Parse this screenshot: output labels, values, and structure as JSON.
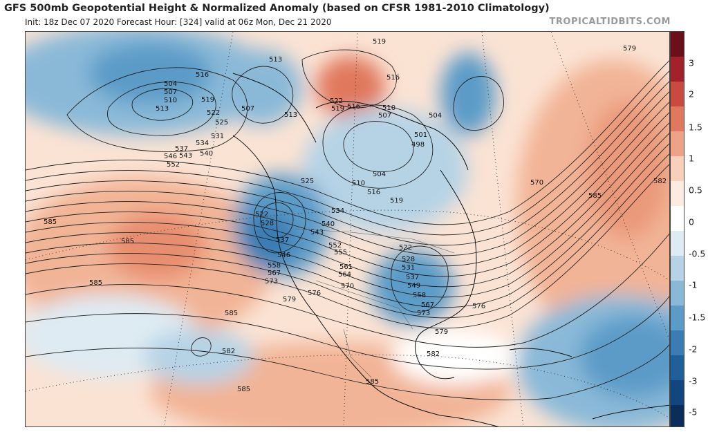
{
  "header": {
    "title": "GFS 500mb Geopotential Height & Normalized Anomaly (based on CFSR 1981-2010 Climatology)",
    "subtitle": "Init: 18z Dec 07 2020   Forecast Hour: [324]   valid at 06z Mon, Dec 21 2020",
    "brand": "TROPICALTIDBITS.COM"
  },
  "colorbar": {
    "ticks": [
      "3",
      "2",
      "1.5",
      "1",
      "0.5",
      "0",
      "-0.5",
      "-1",
      "-1.5",
      "-2",
      "-3",
      "-5"
    ],
    "colors": [
      "#6b0f1a",
      "#a3212a",
      "#c94a3f",
      "#e0785d",
      "#eea387",
      "#f8cfbb",
      "#fcebe1",
      "#ffffff",
      "#deebf3",
      "#b6d3e6",
      "#8ab9d8",
      "#5c9bc8",
      "#3a7db4",
      "#1f5f9a",
      "#124680",
      "#0a2d5c"
    ]
  },
  "contour_labels": [
    {
      "id": "label-504-a",
      "text": "504"
    },
    {
      "id": "label-507-a",
      "text": "507"
    },
    {
      "id": "label-510-a",
      "text": "510"
    },
    {
      "id": "label-513-a",
      "text": "513"
    },
    {
      "id": "label-516-a",
      "text": "516"
    },
    {
      "id": "label-519-a",
      "text": "519"
    },
    {
      "id": "label-522-a",
      "text": "522"
    },
    {
      "id": "label-525-a",
      "text": "525"
    },
    {
      "id": "label-531-a",
      "text": "531"
    },
    {
      "id": "label-534-a",
      "text": "534"
    },
    {
      "id": "label-537-a",
      "text": "537"
    },
    {
      "id": "label-540-a",
      "text": "540"
    },
    {
      "id": "label-543-a",
      "text": "543"
    },
    {
      "id": "label-546-a",
      "text": "546"
    },
    {
      "id": "label-552-a",
      "text": "552"
    },
    {
      "id": "label-513-b",
      "text": "513"
    },
    {
      "id": "label-507-b",
      "text": "507"
    },
    {
      "id": "label-513-c",
      "text": "513"
    },
    {
      "id": "label-519-b",
      "text": "519"
    },
    {
      "id": "label-516-b",
      "text": "516"
    },
    {
      "id": "label-522-b",
      "text": "522"
    },
    {
      "id": "label-519-c",
      "text": "519"
    },
    {
      "id": "label-516-c",
      "text": "516"
    },
    {
      "id": "label-510-b",
      "text": "510"
    },
    {
      "id": "label-507-c",
      "text": "507"
    },
    {
      "id": "label-504-b",
      "text": "504"
    },
    {
      "id": "label-501",
      "text": "501"
    },
    {
      "id": "label-498",
      "text": "498"
    },
    {
      "id": "label-504-c",
      "text": "504"
    },
    {
      "id": "label-510-c",
      "text": "510"
    },
    {
      "id": "label-516-d",
      "text": "516"
    },
    {
      "id": "label-519-d",
      "text": "519"
    },
    {
      "id": "label-525-b",
      "text": "525"
    },
    {
      "id": "label-522-c",
      "text": "522"
    },
    {
      "id": "label-528-a",
      "text": "528"
    },
    {
      "id": "label-534-b",
      "text": "534"
    },
    {
      "id": "label-540-b",
      "text": "540"
    },
    {
      "id": "label-543-b",
      "text": "543"
    },
    {
      "id": "label-537-b",
      "text": "537"
    },
    {
      "id": "label-546-b",
      "text": "546"
    },
    {
      "id": "label-552-b",
      "text": "552"
    },
    {
      "id": "label-555",
      "text": "555"
    },
    {
      "id": "label-558-a",
      "text": "558"
    },
    {
      "id": "label-561",
      "text": "561"
    },
    {
      "id": "label-564",
      "text": "564"
    },
    {
      "id": "label-567-a",
      "text": "567"
    },
    {
      "id": "label-573-a",
      "text": "573"
    },
    {
      "id": "label-570-a",
      "text": "570"
    },
    {
      "id": "label-576-a",
      "text": "576"
    },
    {
      "id": "label-579-a",
      "text": "579"
    },
    {
      "id": "label-522-d",
      "text": "522"
    },
    {
      "id": "label-528-b",
      "text": "528"
    },
    {
      "id": "label-531-b",
      "text": "531"
    },
    {
      "id": "label-537-c",
      "text": "537"
    },
    {
      "id": "label-549",
      "text": "549"
    },
    {
      "id": "label-558-b",
      "text": "558"
    },
    {
      "id": "label-567-b",
      "text": "567"
    },
    {
      "id": "label-573-b",
      "text": "573"
    },
    {
      "id": "label-576-b",
      "text": "576"
    },
    {
      "id": "label-579-b",
      "text": "579"
    },
    {
      "id": "label-582-a",
      "text": "582"
    },
    {
      "id": "label-570-b",
      "text": "570"
    },
    {
      "id": "label-585-a",
      "text": "585"
    },
    {
      "id": "label-579-c",
      "text": "579"
    },
    {
      "id": "label-582-b",
      "text": "582"
    },
    {
      "id": "label-585-b",
      "text": "585"
    },
    {
      "id": "label-585-c",
      "text": "585"
    },
    {
      "id": "label-585-d",
      "text": "585"
    },
    {
      "id": "label-585-e",
      "text": "585"
    },
    {
      "id": "label-582-c",
      "text": "582"
    },
    {
      "id": "label-585-f",
      "text": "585"
    },
    {
      "id": "label-585-g",
      "text": "585"
    }
  ]
}
